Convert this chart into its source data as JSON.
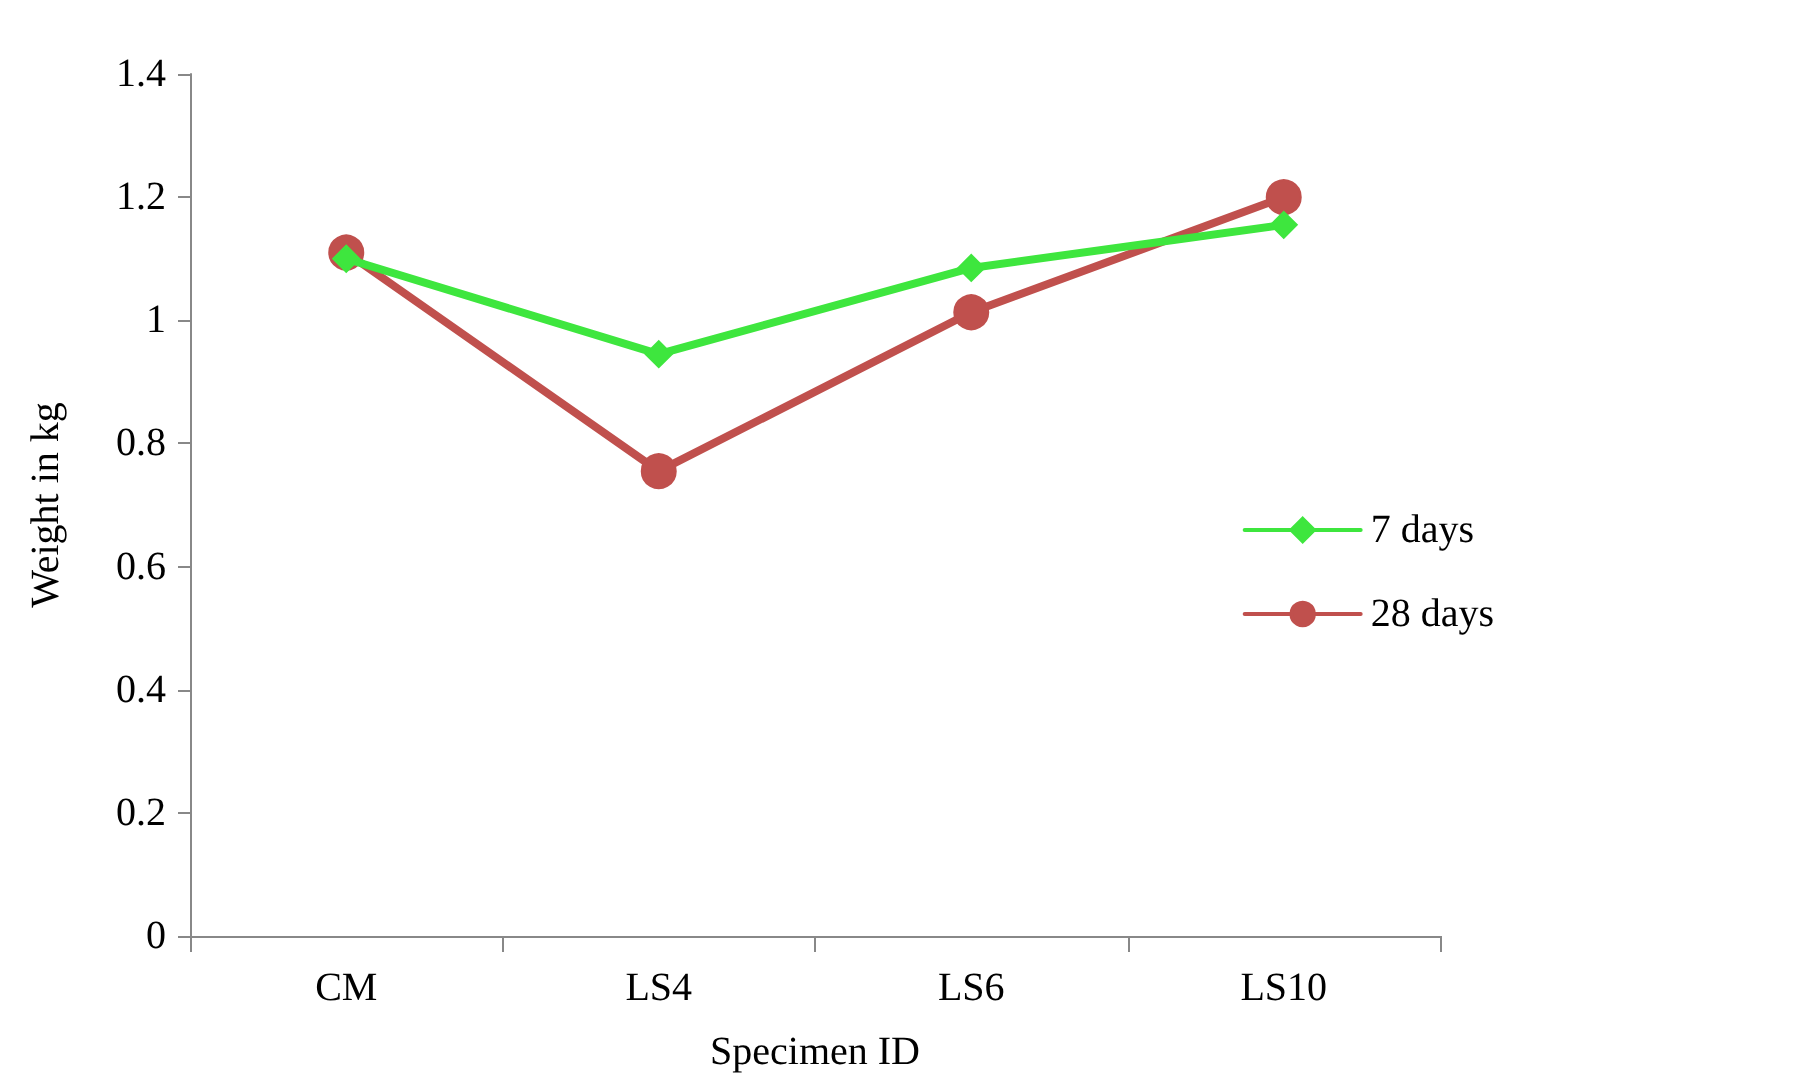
{
  "chart_data": {
    "type": "line",
    "xlabel": "Specimen ID",
    "ylabel": "Weight in kg",
    "categories": [
      "CM",
      "LS4",
      "LS6",
      "LS10"
    ],
    "series": [
      {
        "name": "7 days",
        "color": "#3ee63e",
        "marker": "diamond",
        "values": [
          1.1,
          0.945,
          1.085,
          1.155
        ]
      },
      {
        "name": "28 days",
        "color": "#c0504d",
        "marker": "circle",
        "values": [
          1.11,
          0.755,
          1.013,
          1.2
        ]
      }
    ],
    "ylim": [
      0,
      1.4
    ],
    "yticks": [
      0,
      0.2,
      0.4,
      0.6,
      0.8,
      1,
      1.2,
      1.4
    ],
    "grid": false,
    "legend": "right",
    "line_style": "solid"
  }
}
